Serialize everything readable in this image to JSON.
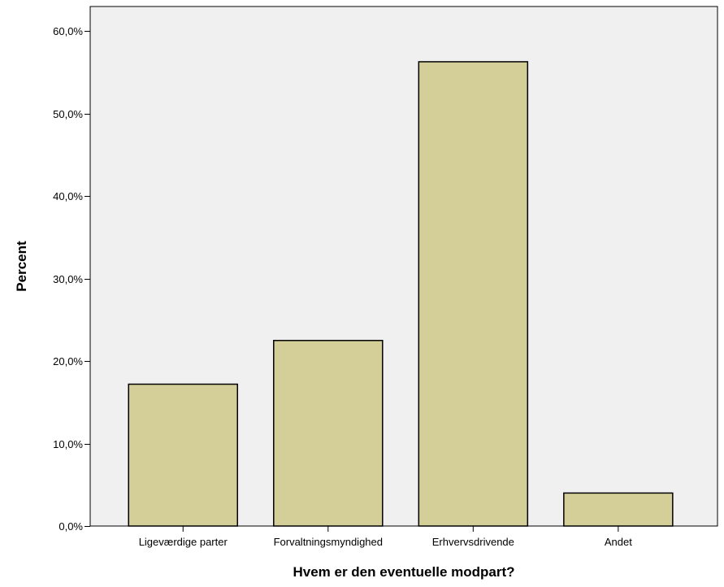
{
  "chart_data": {
    "type": "bar",
    "categories": [
      "Ligeværdige parter",
      "Forvaltningsmyndighed",
      "Erhvervsdrivende",
      "Andet"
    ],
    "values": [
      17.2,
      22.5,
      56.3,
      4.0
    ],
    "xlabel": "Hvem er den eventuelle modpart?",
    "ylabel": "Percent",
    "ylim": [
      0,
      63
    ],
    "yticks": [
      0,
      10,
      20,
      30,
      40,
      50,
      60
    ],
    "ytick_labels": [
      "0,0%",
      "10,0%",
      "20,0%",
      "30,0%",
      "40,0%",
      "50,0%",
      "60,0%"
    ],
    "grid": false,
    "legend": "none",
    "colors": {
      "bar_fill": "#d4cf98",
      "bar_stroke": "#000000",
      "plot_background": "#f0f0f0",
      "page_background": "#ffffff",
      "axis": "#000000"
    }
  }
}
